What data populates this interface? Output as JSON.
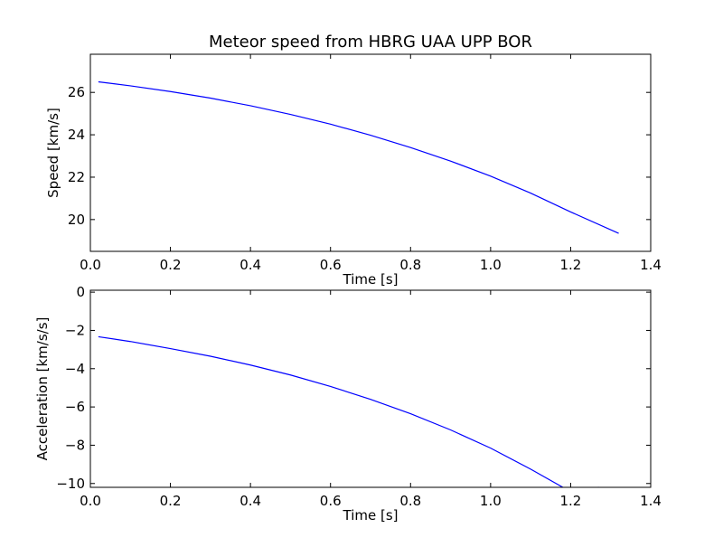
{
  "chart_data": [
    {
      "type": "line",
      "title": "Meteor speed from  HBRG UAA UPP BOR",
      "xlabel": "Time [s]",
      "ylabel": "Speed [km/s]",
      "xlim": [
        0.0,
        1.4
      ],
      "ylim": [
        18.5,
        27.8
      ],
      "xticks": [
        "0.0",
        "0.2",
        "0.4",
        "0.6",
        "0.8",
        "1.0",
        "1.2",
        "1.4"
      ],
      "yticks": [
        "20",
        "22",
        "24",
        "26"
      ],
      "grid": false,
      "color": "#0000ff",
      "series": [
        {
          "x": [
            0.02,
            0.1,
            0.2,
            0.3,
            0.4,
            0.5,
            0.6,
            0.7,
            0.8,
            0.9,
            1.0,
            1.1,
            1.2,
            1.32
          ],
          "values": [
            26.5,
            26.31,
            26.04,
            25.73,
            25.37,
            24.96,
            24.5,
            23.98,
            23.4,
            22.76,
            22.05,
            21.25,
            20.36,
            19.35
          ]
        }
      ]
    },
    {
      "type": "line",
      "title": "",
      "xlabel": "Time [s]",
      "ylabel": "Acceleration [km/s/s]",
      "xlim": [
        0.0,
        1.4
      ],
      "ylim": [
        -10.2,
        0.1
      ],
      "xticks": [
        "0.0",
        "0.2",
        "0.4",
        "0.6",
        "0.8",
        "1.0",
        "1.2",
        "1.4"
      ],
      "yticks": [
        "−10",
        "−8",
        "−6",
        "−4",
        "−2",
        "0"
      ],
      "grid": false,
      "color": "#0000ff",
      "series": [
        {
          "x": [
            0.02,
            0.1,
            0.2,
            0.3,
            0.4,
            0.5,
            0.6,
            0.7,
            0.8,
            0.9,
            1.0,
            1.1,
            1.2,
            1.27
          ],
          "values": [
            -2.33,
            -2.58,
            -2.95,
            -3.35,
            -3.81,
            -4.33,
            -4.93,
            -5.6,
            -6.35,
            -7.2,
            -8.15,
            -9.25,
            -10.43,
            -10.2
          ]
        }
      ]
    }
  ]
}
